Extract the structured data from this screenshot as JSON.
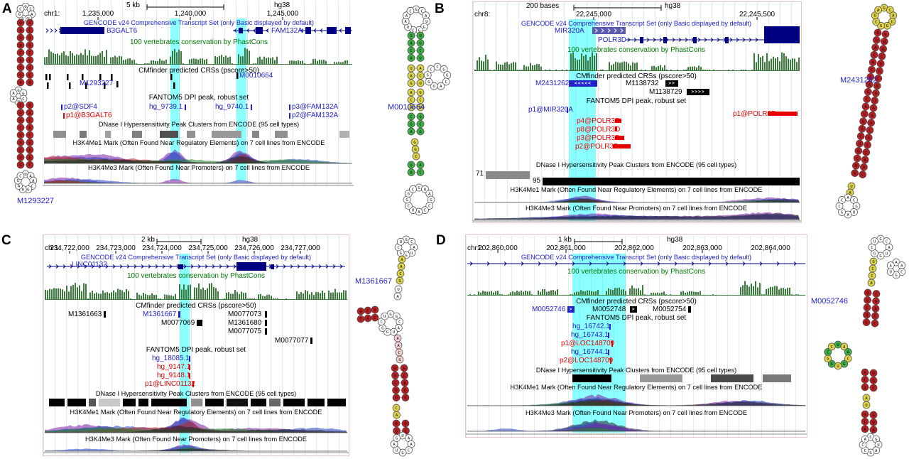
{
  "tracks": {
    "gencode": "GENCODE v24 Comprehensive Transcript Set (only Basic displayed by default)",
    "conservation": "100 vertebrates conservation by PhastCons",
    "cmfinder": "CMfinder predicted CRSs (pscore>50)",
    "fantom": "FANTOM5 DPI peak, robust set",
    "dnase": "DNase I Hypersensitivity Peak Clusters from ENCODE (95 cell types)",
    "h3k4me1": "H3K4Me1 Mark (Often Found Near Regulatory Elements) on 7 cell lines from ENCODE",
    "h3k4me3": "H3K4Me3 Mark (Often Found Near Promoters) on 7 cell lines from ENCODE"
  },
  "panels": {
    "a": {
      "letter": "A",
      "scale": "5 kb",
      "assembly": "hg38",
      "chrom": "chr1:",
      "positions": [
        "1,235,000",
        "1,240,000",
        "1,245,000"
      ],
      "genes": {
        "g1": "B3GALT6",
        "g2": "FAM132A"
      },
      "crs_labels": {
        "c1": "M1293227",
        "c2": "M0010664"
      },
      "fantom_items": {
        "f1": "p2@SDF4",
        "f2": "p1@B3GALT6",
        "f3": "hg_9739.1",
        "f4": "hg_9740.1",
        "f5": "p3@FAM132A",
        "f6": "p2@FAM132A"
      },
      "structures": {
        "left": "M1293227",
        "right": "M0010664"
      }
    },
    "b": {
      "letter": "B",
      "scale": "200 bases",
      "assembly": "hg38",
      "chrom": "chr8:",
      "positions": [
        "22,245,000",
        "22,245,500"
      ],
      "genes": {
        "g1": "MIR320A",
        "g2": "POLR3D"
      },
      "crs_items": {
        "c1": {
          "label": "M2431262",
          "arrows": "<<<<<"
        },
        "c2": {
          "label": "M1138732",
          "arrows": ">>"
        },
        "c3": {
          "label": "M1138729",
          "arrows": ">>>>"
        }
      },
      "fantom_items": {
        "f1": "p1@MIR320A",
        "f2": "p1@POLR3D",
        "f3": "p4@POLR3D",
        "f4": "p8@POLR3D",
        "f5": "p3@POLR3D",
        "f6": "p2@POLR3D"
      },
      "dnase_scores": {
        "s1": "71",
        "s2": "95"
      },
      "structures": {
        "right": "M2431262"
      }
    },
    "c": {
      "letter": "C",
      "scale": "2 kb",
      "assembly": "hg38",
      "chrom": "chr1:",
      "positions": [
        "234,722,000",
        "234,723,000",
        "234,724,000",
        "234,725,000",
        "234,726,000",
        "234,727,000"
      ],
      "genes": {
        "g1": "LINC01132"
      },
      "crs_labels": {
        "c1": "M1361663",
        "c2": "M1361667",
        "c3": "M0077073",
        "c4": "M0077069",
        "c5": "M1361680",
        "c6": "M0077075",
        "c7": "M0077077"
      },
      "fantom_items": {
        "f1": "hg_18085.1",
        "f2": "hg_9147.1",
        "f3": "hg_9148.1",
        "f4": "p1@LINC01132"
      },
      "structures": {
        "right": "M1361667"
      }
    },
    "d": {
      "letter": "D",
      "scale": "1 kb",
      "assembly": "hg38",
      "chrom": "chr1:",
      "positions": [
        "202,860,000",
        "202,861,000",
        "202,862,000",
        "202,863,000",
        "202,864,000"
      ],
      "crs_items": {
        "c1": {
          "label": "M0052746",
          "arrows": ">"
        },
        "c2": {
          "label": "M0052748",
          "arrows": ">"
        },
        "c3": {
          "label": "M0052754"
        }
      },
      "fantom_items": {
        "f1": "hg_16742.1",
        "f2": "hg_16743.1",
        "f3": "p1@LOC148709",
        "f4": "hg_16744.1",
        "f5": "p2@LOC148709"
      },
      "structures": {
        "right": "M0052746"
      }
    }
  }
}
